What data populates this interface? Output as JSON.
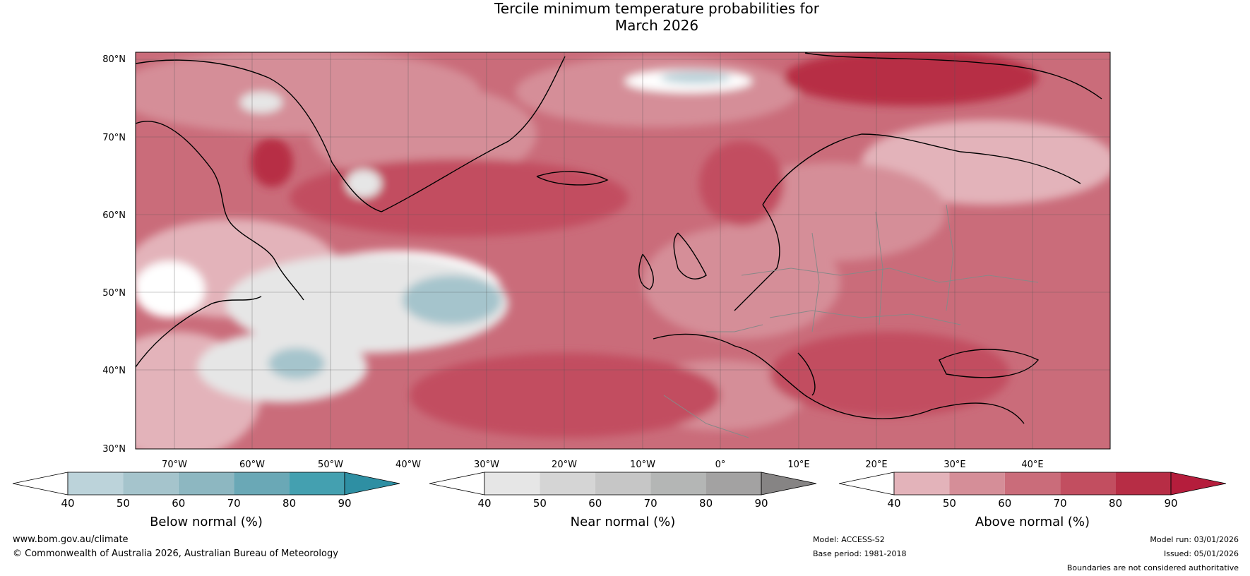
{
  "title_line1": "Tercile minimum temperature probabilities for",
  "title_line2": "March 2026",
  "map": {
    "lat_labels": [
      "80°N",
      "70°N",
      "60°N",
      "50°N",
      "40°N",
      "30°N"
    ],
    "lon_labels_row": [
      "70°W",
      "60°W",
      "50°W",
      "40°W",
      "30°W",
      "20°W",
      "10°W",
      "0°",
      "10°E",
      "20°E",
      "30°E",
      "40°E"
    ],
    "colors": {
      "above_1": "#e3b3ba",
      "above_2": "#d58e98",
      "above_3": "#ca6c7a",
      "above_4": "#c24e60",
      "above_5": "#b72d45",
      "below_1": "#bcd3da",
      "below_2": "#a5c4cc",
      "below_3": "#8db7c1",
      "below_4": "#6aa8b6",
      "below_5": "#44a0b0",
      "near": "#e6e6e6"
    }
  },
  "colorbars": {
    "ticks": [
      "40",
      "50",
      "60",
      "70",
      "80",
      "90"
    ],
    "below": {
      "label": "Below normal (%)",
      "colors": [
        "#bcd3da",
        "#a5c4cc",
        "#8db7c1",
        "#6aa8b6",
        "#44a0b0"
      ],
      "tip": "#2e8fa3"
    },
    "near": {
      "label": "Near normal (%)",
      "colors": [
        "#e6e6e6",
        "#d5d5d5",
        "#c6c6c6",
        "#b4b6b5",
        "#a3a2a2"
      ],
      "tip": "#868484"
    },
    "above": {
      "label": "Above normal (%)",
      "colors": [
        "#e3b3ba",
        "#d58e98",
        "#ca6c7a",
        "#c24e60",
        "#b72d45"
      ],
      "tip": "#b51d3c"
    }
  },
  "footer": {
    "website": "www.bom.gov.au/climate",
    "copyright": "© Commonwealth of Australia 2026, Australian Bureau of Meteorology",
    "model": "Model: ACCESS-S2",
    "base_period": "Base period: 1981-2018",
    "model_run": "Model run: 03/01/2026",
    "issued": "Issued: 05/01/2026",
    "disclaimer": "Boundaries are not considered authoritative"
  }
}
